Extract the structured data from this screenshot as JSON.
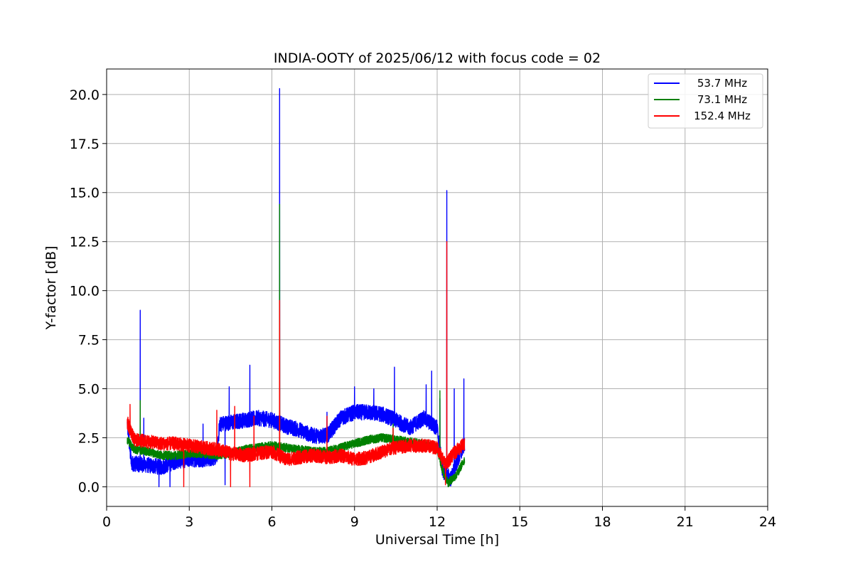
{
  "chart_data": {
    "type": "line",
    "title": "INDIA-OOTY of 2025/06/12 with focus code = 02",
    "xlabel": "Universal Time [h]",
    "ylabel": "Y-factor [dB]",
    "xlim": [
      0,
      24
    ],
    "ylim": [
      -1.0,
      21.3
    ],
    "xticks": [
      0,
      3,
      6,
      9,
      12,
      15,
      18,
      21,
      24
    ],
    "xtick_labels": [
      "0",
      "3",
      "6",
      "9",
      "12",
      "15",
      "18",
      "21",
      "24"
    ],
    "yticks": [
      0,
      2.5,
      5,
      7.5,
      10,
      12.5,
      15,
      17.5,
      20
    ],
    "ytick_labels": [
      "0.0",
      "2.5",
      "5.0",
      "7.5",
      "10.0",
      "12.5",
      "15.0",
      "17.5",
      "20.0"
    ],
    "grid": true,
    "legend_position": "top-right",
    "series": [
      {
        "name": "53.7 MHz",
        "color": "#0000ff",
        "base": [
          [
            0.75,
            3.2
          ],
          [
            0.9,
            1.2
          ],
          [
            1.5,
            1.1
          ],
          [
            2.0,
            1.0
          ],
          [
            2.5,
            1.3
          ],
          [
            3.0,
            1.4
          ],
          [
            3.5,
            1.4
          ],
          [
            4.0,
            1.5
          ],
          [
            4.1,
            3.2
          ],
          [
            4.6,
            3.3
          ],
          [
            5.0,
            3.4
          ],
          [
            5.5,
            3.5
          ],
          [
            6.0,
            3.4
          ],
          [
            6.5,
            3.1
          ],
          [
            7.0,
            2.9
          ],
          [
            7.5,
            2.6
          ],
          [
            8.0,
            2.6
          ],
          [
            8.5,
            3.5
          ],
          [
            9.0,
            3.8
          ],
          [
            9.5,
            3.8
          ],
          [
            10.0,
            3.7
          ],
          [
            10.5,
            3.4
          ],
          [
            11.0,
            3.0
          ],
          [
            11.5,
            3.5
          ],
          [
            12.0,
            3.0
          ],
          [
            12.2,
            0.8
          ],
          [
            12.5,
            0.4
          ],
          [
            12.8,
            1.6
          ],
          [
            13.0,
            2.2
          ]
        ],
        "noise": 0.4,
        "spikes": [
          [
            1.22,
            9.0
          ],
          [
            1.35,
            3.5
          ],
          [
            3.5,
            3.2
          ],
          [
            4.45,
            5.1
          ],
          [
            5.2,
            6.2
          ],
          [
            6.28,
            20.3
          ],
          [
            8.0,
            3.8
          ],
          [
            9.0,
            5.1
          ],
          [
            9.7,
            5.0
          ],
          [
            10.45,
            6.1
          ],
          [
            11.6,
            5.2
          ],
          [
            11.8,
            5.9
          ],
          [
            12.1,
            4.5
          ],
          [
            12.35,
            15.1
          ],
          [
            12.62,
            5.0
          ],
          [
            12.97,
            5.5
          ]
        ],
        "dips": [
          [
            1.9,
            0.0
          ],
          [
            2.3,
            0.0
          ],
          [
            4.3,
            0.1
          ],
          [
            12.5,
            0.2
          ]
        ]
      },
      {
        "name": "73.1 MHz",
        "color": "#008000",
        "base": [
          [
            0.75,
            2.4
          ],
          [
            1.0,
            1.9
          ],
          [
            1.5,
            1.8
          ],
          [
            2.0,
            1.6
          ],
          [
            2.5,
            1.6
          ],
          [
            3.0,
            1.7
          ],
          [
            3.5,
            1.7
          ],
          [
            4.0,
            1.6
          ],
          [
            4.5,
            1.7
          ],
          [
            5.0,
            1.9
          ],
          [
            5.5,
            2.0
          ],
          [
            6.0,
            2.1
          ],
          [
            6.5,
            2.0
          ],
          [
            7.0,
            1.9
          ],
          [
            7.5,
            1.8
          ],
          [
            8.0,
            1.8
          ],
          [
            8.5,
            2.0
          ],
          [
            9.0,
            2.2
          ],
          [
            9.5,
            2.4
          ],
          [
            10.0,
            2.5
          ],
          [
            10.5,
            2.4
          ],
          [
            11.0,
            2.3
          ],
          [
            11.5,
            2.2
          ],
          [
            12.0,
            2.0
          ],
          [
            12.2,
            0.8
          ],
          [
            12.4,
            0.2
          ],
          [
            12.7,
            0.6
          ],
          [
            13.0,
            1.4
          ]
        ],
        "noise": 0.22,
        "spikes": [
          [
            1.22,
            4.4
          ],
          [
            6.28,
            14.4
          ],
          [
            10.4,
            3.2
          ],
          [
            12.1,
            4.9
          ]
        ],
        "dips": []
      },
      {
        "name": "152.4 MHz",
        "color": "#ff0000",
        "base": [
          [
            0.75,
            3.3
          ],
          [
            1.0,
            2.4
          ],
          [
            1.5,
            2.3
          ],
          [
            2.0,
            2.2
          ],
          [
            2.5,
            2.2
          ],
          [
            3.0,
            2.1
          ],
          [
            3.5,
            2.0
          ],
          [
            4.0,
            1.9
          ],
          [
            4.5,
            1.7
          ],
          [
            5.0,
            1.6
          ],
          [
            5.5,
            1.7
          ],
          [
            6.0,
            1.8
          ],
          [
            6.5,
            1.4
          ],
          [
            7.0,
            1.5
          ],
          [
            7.5,
            1.6
          ],
          [
            8.0,
            1.5
          ],
          [
            8.5,
            1.6
          ],
          [
            9.0,
            1.4
          ],
          [
            9.5,
            1.5
          ],
          [
            10.0,
            1.8
          ],
          [
            10.5,
            2.0
          ],
          [
            11.0,
            2.1
          ],
          [
            11.5,
            2.1
          ],
          [
            12.0,
            2.0
          ],
          [
            12.3,
            1.1
          ],
          [
            12.6,
            1.7
          ],
          [
            13.0,
            2.2
          ]
        ],
        "noise": 0.35,
        "spikes": [
          [
            0.85,
            4.2
          ],
          [
            4.0,
            3.9
          ],
          [
            4.65,
            4.1
          ],
          [
            5.35,
            3.6
          ],
          [
            6.28,
            9.5
          ],
          [
            8.0,
            3.6
          ],
          [
            10.4,
            3.0
          ],
          [
            12.35,
            12.5
          ]
        ],
        "dips": [
          [
            2.8,
            0.0
          ],
          [
            4.5,
            0.0
          ],
          [
            5.2,
            0.0
          ],
          [
            12.3,
            0.1
          ]
        ]
      }
    ]
  }
}
